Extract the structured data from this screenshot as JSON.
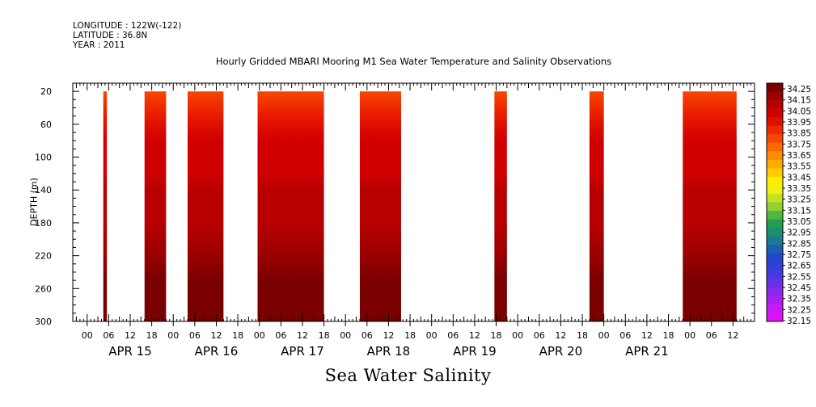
{
  "header": {
    "longitude": "LONGITUDE : 122W(-122)",
    "latitude": "LATITUDE : 36.8N",
    "year": "YEAR : 2011"
  },
  "chart_data": {
    "type": "heatmap",
    "title": "Hourly Gridded MBARI Mooring M1 Sea Water Temperature and Salinity Observations",
    "footer_title": "Sea Water Salinity",
    "ylabel": "DEPTH (m)",
    "xlabel": "",
    "x_unit": "hours since APR 15 00:00",
    "xlim": [
      -4,
      186
    ],
    "ylim": [
      300,
      10
    ],
    "y_ticks": [
      20,
      60,
      100,
      140,
      180,
      220,
      260,
      300
    ],
    "x_tick_labels": [
      "00",
      "06",
      "12",
      "18"
    ],
    "day_labels": [
      "APR 15",
      "APR 16",
      "APR 17",
      "APR 18",
      "APR 19",
      "APR 20",
      "APR 21"
    ],
    "data_depth_range": [
      20,
      300
    ],
    "data_blocks": [
      {
        "start": 4.5,
        "end": 5.5
      },
      {
        "start": 16,
        "end": 22
      },
      {
        "start": 28,
        "end": 38
      },
      {
        "start": 47.5,
        "end": 66
      },
      {
        "start": 76,
        "end": 87.5
      },
      {
        "start": 113.5,
        "end": 117
      },
      {
        "start": 140,
        "end": 144
      },
      {
        "start": 166,
        "end": 181
      }
    ],
    "depth_profile": [
      {
        "depth": 20,
        "salinity": 33.78
      },
      {
        "depth": 40,
        "salinity": 33.85
      },
      {
        "depth": 60,
        "salinity": 33.91
      },
      {
        "depth": 80,
        "salinity": 33.97
      },
      {
        "depth": 100,
        "salinity": 33.99
      },
      {
        "depth": 120,
        "salinity": 34.02
      },
      {
        "depth": 140,
        "salinity": 34.05
      },
      {
        "depth": 180,
        "salinity": 34.08
      },
      {
        "depth": 220,
        "salinity": 34.13
      },
      {
        "depth": 250,
        "salinity": 34.21
      },
      {
        "depth": 280,
        "salinity": 34.19
      },
      {
        "depth": 300,
        "salinity": 34.18
      }
    ],
    "colorbar": {
      "min": 32.15,
      "max": 34.25,
      "labels": [
        "34.25",
        "34.15",
        "34.05",
        "33.95",
        "33.85",
        "33.75",
        "33.65",
        "33.55",
        "33.45",
        "33.35",
        "33.25",
        "33.15",
        "33.05",
        "32.95",
        "32.85",
        "32.75",
        "32.65",
        "32.55",
        "32.45",
        "32.35",
        "32.25",
        "32.15"
      ],
      "colors": [
        "#7a0000",
        "#990000",
        "#b80000",
        "#d00000",
        "#e01000",
        "#ee2800",
        "#f64800",
        "#fa6a00",
        "#fc8c00",
        "#feab00",
        "#ffcc00",
        "#ffee00",
        "#f0f010",
        "#c8e020",
        "#90d030",
        "#50b840",
        "#20a050",
        "#1a9070",
        "#1a7a90",
        "#1a60b0",
        "#2048c8",
        "#3040d8",
        "#4838e0",
        "#6a30e8",
        "#8a28ee",
        "#aa20f2",
        "#c818f6",
        "#e010fa"
      ]
    }
  }
}
